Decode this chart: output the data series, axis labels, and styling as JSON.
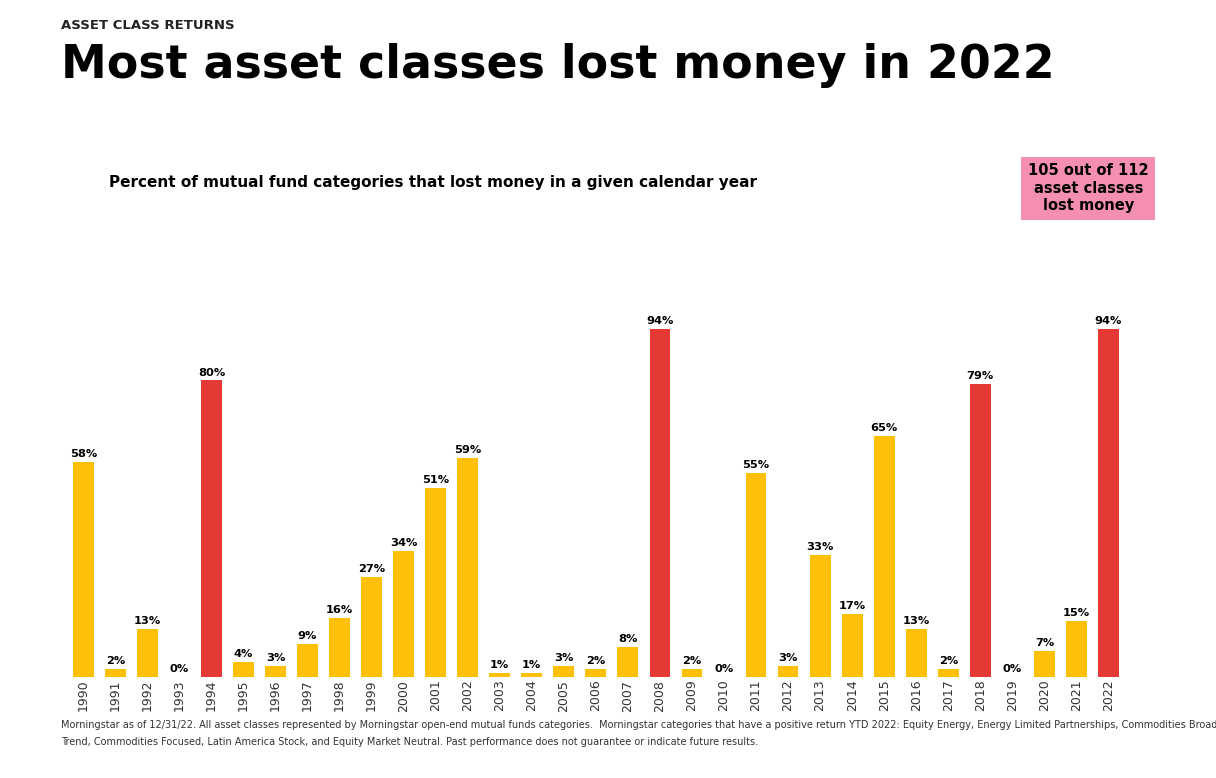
{
  "years": [
    1990,
    1991,
    1992,
    1993,
    1994,
    1995,
    1996,
    1997,
    1998,
    1999,
    2000,
    2001,
    2002,
    2003,
    2004,
    2005,
    2006,
    2007,
    2008,
    2009,
    2010,
    2011,
    2012,
    2013,
    2014,
    2015,
    2016,
    2017,
    2018,
    2019,
    2020,
    2021,
    2022
  ],
  "values": [
    58,
    2,
    13,
    0,
    80,
    4,
    3,
    9,
    16,
    27,
    34,
    51,
    59,
    1,
    1,
    3,
    2,
    8,
    94,
    2,
    0,
    55,
    3,
    33,
    17,
    65,
    13,
    2,
    79,
    0,
    7,
    15,
    94
  ],
  "colors": [
    "#FFC107",
    "#FFC107",
    "#FFC107",
    "#FFC107",
    "#E53935",
    "#FFC107",
    "#FFC107",
    "#FFC107",
    "#FFC107",
    "#FFC107",
    "#FFC107",
    "#FFC107",
    "#FFC107",
    "#FFC107",
    "#FFC107",
    "#FFC107",
    "#FFC107",
    "#FFC107",
    "#E53935",
    "#FFC107",
    "#FFC107",
    "#FFC107",
    "#FFC107",
    "#FFC107",
    "#FFC107",
    "#FFC107",
    "#FFC107",
    "#FFC107",
    "#E53935",
    "#FFC107",
    "#FFC107",
    "#FFC107",
    "#E53935"
  ],
  "supertitle": "ASSET CLASS RETURNS",
  "title": "Most asset classes lost money in 2022",
  "subtitle": "Percent of mutual fund categories that lost money in a given calendar year",
  "annotation_text": "105 out of 112\nasset classes\nlost money",
  "annotation_bg": "#F48FB1",
  "footnote_line1": "Morningstar as of 12/31/22. All asset classes represented by Morningstar open-end mutual funds categories.  Morningstar categories that have a positive return YTD 2022: Equity Energy, Energy Limited Partnerships, Commodities Broad Basket, Systematic",
  "footnote_line2": "Trend, Commodities Focused, Latin America Stock, and Equity Market Neutral. Past performance does not guarantee or indicate future results.",
  "bar_width": 0.65,
  "ylim_max": 105,
  "background_color": "#FFFFFF",
  "supertitle_color": "#222222",
  "title_color": "#000000",
  "subtitle_color": "#000000",
  "bar_label_color": "#000000",
  "footnote_color": "#333333",
  "xlabel_color": "#333333"
}
